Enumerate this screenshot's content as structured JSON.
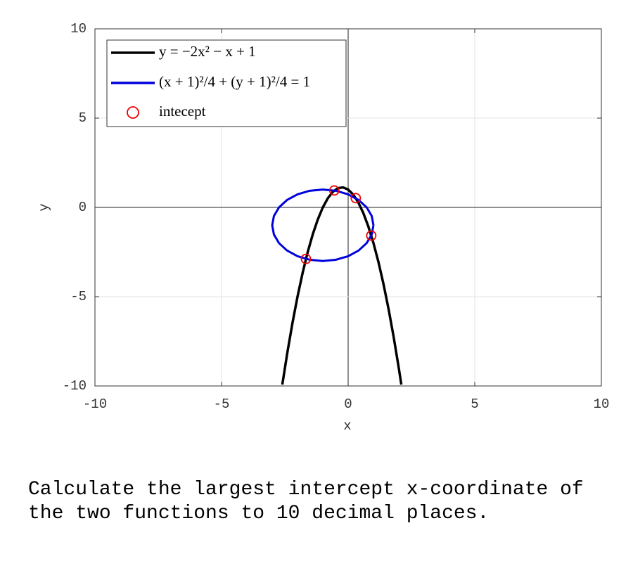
{
  "chart_data": {
    "type": "line",
    "xlabel": "x",
    "ylabel": "y",
    "xlim": [
      -10,
      10
    ],
    "ylim": [
      -10,
      10
    ],
    "xticks": [
      -10,
      -5,
      0,
      5,
      10
    ],
    "yticks": [
      -10,
      -5,
      0,
      5,
      10
    ],
    "grid": true,
    "legend": "upper left",
    "series": [
      {
        "name": "y = −2x² − x + 1",
        "color": "#000000",
        "kind": "line",
        "x": [
          -2.6,
          -2.4,
          -2.2,
          -2.0,
          -1.8,
          -1.6,
          -1.4,
          -1.2,
          -1.0,
          -0.8,
          -0.6,
          -0.4,
          -0.2,
          0,
          0.2,
          0.4,
          0.6,
          0.8,
          1.0,
          1.2,
          1.4,
          1.6,
          1.8,
          2.0,
          2.1
        ],
        "values": [
          -9.92,
          -8.12,
          -6.48,
          -5,
          -3.68,
          -2.52,
          -1.52,
          -0.68,
          0,
          0.52,
          0.88,
          1.08,
          1.12,
          1,
          0.72,
          0.28,
          -0.32,
          -1.08,
          -2,
          -3.08,
          -4.32,
          -5.72,
          -7.28,
          -9,
          -9.92
        ]
      },
      {
        "name": "(x + 1)²/4 + (y + 1)²/4 = 1",
        "color": "#0000dd",
        "kind": "line",
        "x": [
          1,
          0.932,
          0.732,
          0.414,
          0,
          -0.482,
          -1,
          -1.518,
          -2,
          -2.414,
          -2.732,
          -2.932,
          -3,
          -2.932,
          -2.732,
          -2.414,
          -2,
          -1.518,
          -1,
          -0.482,
          0,
          0.414,
          0.732,
          0.932,
          1
        ],
        "values": [
          -1,
          -0.482,
          0,
          0.414,
          0.732,
          0.932,
          1,
          0.932,
          0.732,
          0.414,
          0,
          -0.482,
          -1,
          -1.518,
          -2,
          -2.414,
          -2.732,
          -2.932,
          -3,
          -2.932,
          -2.732,
          -2.414,
          -2,
          -1.518,
          -1
        ]
      },
      {
        "name": "intecept",
        "color": "#ee0000",
        "kind": "scatter",
        "x": [
          -1.667,
          -0.548,
          0.3,
          0.913
        ],
        "values": [
          -2.884,
          0.948,
          0.52,
          -1.581
        ]
      }
    ]
  },
  "question": "Calculate the largest intercept x-coordinate of the two functions to 10 decimal places."
}
